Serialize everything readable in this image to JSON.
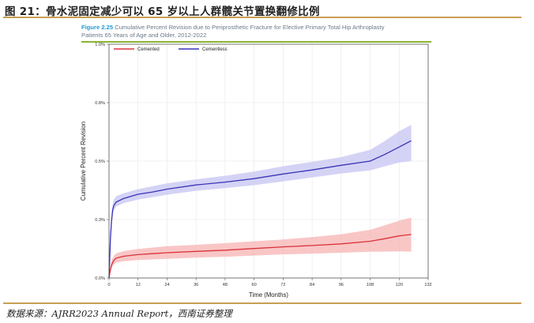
{
  "header": {
    "title": "图 21：骨水泥固定减少可以 65 岁以上人群髋关节置换翻修比例"
  },
  "figure": {
    "label": "Figure 2.25",
    "caption_line1": " Cumulative Percent Revision due to Periprosthetic Fracture for Elective Primary Total Hip Arthroplasty",
    "caption_line2": "Patients 65 Years of Age and Older, 2012-2022"
  },
  "footer": {
    "source": "数据来源：AJRR2023 Annual Report，西南证券整理"
  },
  "colors": {
    "cemented": "#d9333a",
    "cemented_band": "#f7b3b3",
    "cementless": "#3a34b8",
    "cementless_band": "#c6c4f2",
    "rule": "#c8a052",
    "fig_label": "#1f9bd7",
    "underline": "#8ab632"
  },
  "chart_data": {
    "type": "line",
    "title": "Cumulative Percent Revision due to Periprosthetic Fracture for Elective Primary Total Hip Arthroplasty Patients 65 Years of Age and Older, 2012-2022",
    "xlabel": "Time (Months)",
    "ylabel": "Cumulative Percent Revision",
    "xlim": [
      0,
      132
    ],
    "ylim": [
      0,
      1.0
    ],
    "x_ticks": [
      0,
      12,
      24,
      36,
      48,
      60,
      72,
      84,
      96,
      108,
      120,
      132
    ],
    "y_ticks": [
      0,
      0.25,
      0.5,
      0.75,
      1.0
    ],
    "y_tick_labels": [
      "0.0%",
      "0.3%",
      "0.5%",
      "0.8%",
      "1.0%"
    ],
    "grid": true,
    "legend_position": "top-left",
    "series": [
      {
        "name": "Cemented",
        "points": [
          [
            0,
            0
          ],
          [
            0.5,
            0.03
          ],
          [
            1,
            0.055
          ],
          [
            2,
            0.075
          ],
          [
            3,
            0.085
          ],
          [
            6,
            0.093
          ],
          [
            12,
            0.1
          ],
          [
            18,
            0.104
          ],
          [
            24,
            0.108
          ],
          [
            36,
            0.114
          ],
          [
            48,
            0.119
          ],
          [
            60,
            0.126
          ],
          [
            72,
            0.133
          ],
          [
            84,
            0.139
          ],
          [
            96,
            0.146
          ],
          [
            108,
            0.157
          ],
          [
            114,
            0.168
          ],
          [
            120,
            0.18
          ],
          [
            125,
            0.186
          ]
        ],
        "lower": [
          [
            0,
            0
          ],
          [
            0.5,
            0.02
          ],
          [
            1,
            0.04
          ],
          [
            2,
            0.058
          ],
          [
            3,
            0.066
          ],
          [
            6,
            0.072
          ],
          [
            12,
            0.077
          ],
          [
            24,
            0.082
          ],
          [
            36,
            0.087
          ],
          [
            48,
            0.091
          ],
          [
            60,
            0.096
          ],
          [
            72,
            0.101
          ],
          [
            84,
            0.104
          ],
          [
            96,
            0.108
          ],
          [
            108,
            0.112
          ],
          [
            114,
            0.113
          ],
          [
            120,
            0.114
          ],
          [
            125,
            0.113
          ]
        ],
        "upper": [
          [
            0,
            0
          ],
          [
            0.5,
            0.04
          ],
          [
            1,
            0.075
          ],
          [
            2,
            0.095
          ],
          [
            3,
            0.105
          ],
          [
            6,
            0.115
          ],
          [
            12,
            0.124
          ],
          [
            24,
            0.136
          ],
          [
            36,
            0.142
          ],
          [
            48,
            0.149
          ],
          [
            60,
            0.157
          ],
          [
            72,
            0.165
          ],
          [
            84,
            0.175
          ],
          [
            96,
            0.187
          ],
          [
            108,
            0.206
          ],
          [
            114,
            0.225
          ],
          [
            120,
            0.245
          ],
          [
            125,
            0.258
          ]
        ]
      },
      {
        "name": "Cementless",
        "points": [
          [
            0,
            0
          ],
          [
            0.3,
            0.08
          ],
          [
            0.6,
            0.17
          ],
          [
            1,
            0.24
          ],
          [
            1.5,
            0.29
          ],
          [
            2,
            0.31
          ],
          [
            3,
            0.325
          ],
          [
            6,
            0.34
          ],
          [
            12,
            0.358
          ],
          [
            18,
            0.368
          ],
          [
            24,
            0.38
          ],
          [
            36,
            0.398
          ],
          [
            48,
            0.41
          ],
          [
            60,
            0.425
          ],
          [
            72,
            0.445
          ],
          [
            84,
            0.462
          ],
          [
            96,
            0.482
          ],
          [
            108,
            0.5
          ],
          [
            114,
            0.528
          ],
          [
            120,
            0.56
          ],
          [
            125,
            0.587
          ]
        ],
        "lower": [
          [
            0,
            0
          ],
          [
            0.3,
            0.06
          ],
          [
            0.6,
            0.14
          ],
          [
            1,
            0.21
          ],
          [
            1.5,
            0.265
          ],
          [
            2,
            0.29
          ],
          [
            3,
            0.305
          ],
          [
            6,
            0.32
          ],
          [
            12,
            0.335
          ],
          [
            24,
            0.356
          ],
          [
            36,
            0.373
          ],
          [
            48,
            0.384
          ],
          [
            60,
            0.397
          ],
          [
            72,
            0.413
          ],
          [
            84,
            0.43
          ],
          [
            96,
            0.447
          ],
          [
            108,
            0.46
          ],
          [
            114,
            0.477
          ],
          [
            120,
            0.494
          ],
          [
            125,
            0.5
          ]
        ],
        "upper": [
          [
            0,
            0
          ],
          [
            0.3,
            0.1
          ],
          [
            0.6,
            0.2
          ],
          [
            1,
            0.27
          ],
          [
            1.5,
            0.315
          ],
          [
            2,
            0.335
          ],
          [
            3,
            0.35
          ],
          [
            6,
            0.362
          ],
          [
            12,
            0.38
          ],
          [
            24,
            0.405
          ],
          [
            36,
            0.422
          ],
          [
            48,
            0.437
          ],
          [
            60,
            0.455
          ],
          [
            72,
            0.478
          ],
          [
            84,
            0.497
          ],
          [
            96,
            0.517
          ],
          [
            108,
            0.548
          ],
          [
            114,
            0.585
          ],
          [
            120,
            0.628
          ],
          [
            125,
            0.655
          ]
        ]
      }
    ]
  }
}
